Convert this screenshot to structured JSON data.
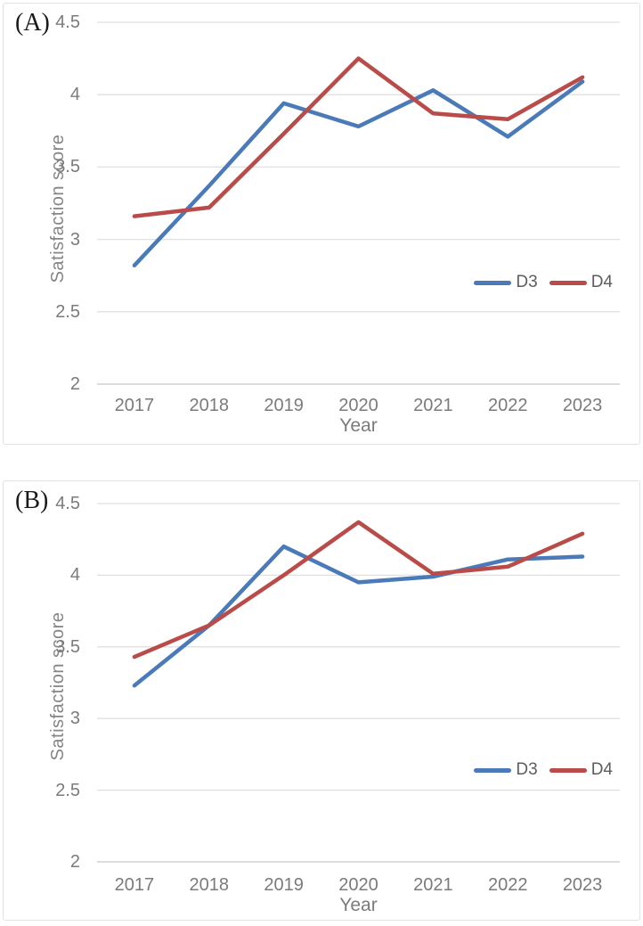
{
  "page": {
    "background": "#ffffff"
  },
  "colors": {
    "series_blue": "#4a7ab7",
    "series_red": "#b94c49",
    "gridline": "#e0e0e0",
    "axis_line": "#c8c8c8",
    "tick_text": "#7b7b7b",
    "legend_text": "#5d5d5d"
  },
  "charts": [
    {
      "panel_label": "(A)",
      "chart_data": {
        "type": "line",
        "title": "",
        "xlabel": "Year",
        "ylabel": "Satisfaction score",
        "categories": [
          "2017",
          "2018",
          "2019",
          "2020",
          "2021",
          "2022",
          "2023"
        ],
        "series": [
          {
            "name": "D3",
            "color": "#4a7ab7",
            "values": [
              2.82,
              3.37,
              3.94,
              3.78,
              4.03,
              3.71,
              4.09
            ]
          },
          {
            "name": "D4",
            "color": "#b94c49",
            "values": [
              3.16,
              3.22,
              3.73,
              4.25,
              3.87,
              3.83,
              4.12
            ]
          }
        ],
        "ylim": [
          2,
          4.5
        ],
        "yticks": [
          "4.5",
          "4",
          "3.5",
          "3",
          "2.5",
          "2"
        ],
        "grid": true,
        "legend_position": "right-lower-inside"
      }
    },
    {
      "panel_label": "(B)",
      "chart_data": {
        "type": "line",
        "title": "",
        "xlabel": "Year",
        "ylabel": "Satisfaction score",
        "categories": [
          "2017",
          "2018",
          "2019",
          "2020",
          "2021",
          "2022",
          "2023"
        ],
        "series": [
          {
            "name": "D3",
            "color": "#4a7ab7",
            "values": [
              3.23,
              3.65,
              4.2,
              3.95,
              3.99,
              4.11,
              4.13
            ]
          },
          {
            "name": "D4",
            "color": "#b94c49",
            "values": [
              3.43,
              3.65,
              4.0,
              4.37,
              4.01,
              4.06,
              4.29
            ]
          }
        ],
        "ylim": [
          2,
          4.5
        ],
        "yticks": [
          "4.5",
          "4",
          "3.5",
          "3",
          "2.5",
          "2"
        ],
        "grid": true,
        "legend_position": "right-lower-inside"
      }
    }
  ]
}
